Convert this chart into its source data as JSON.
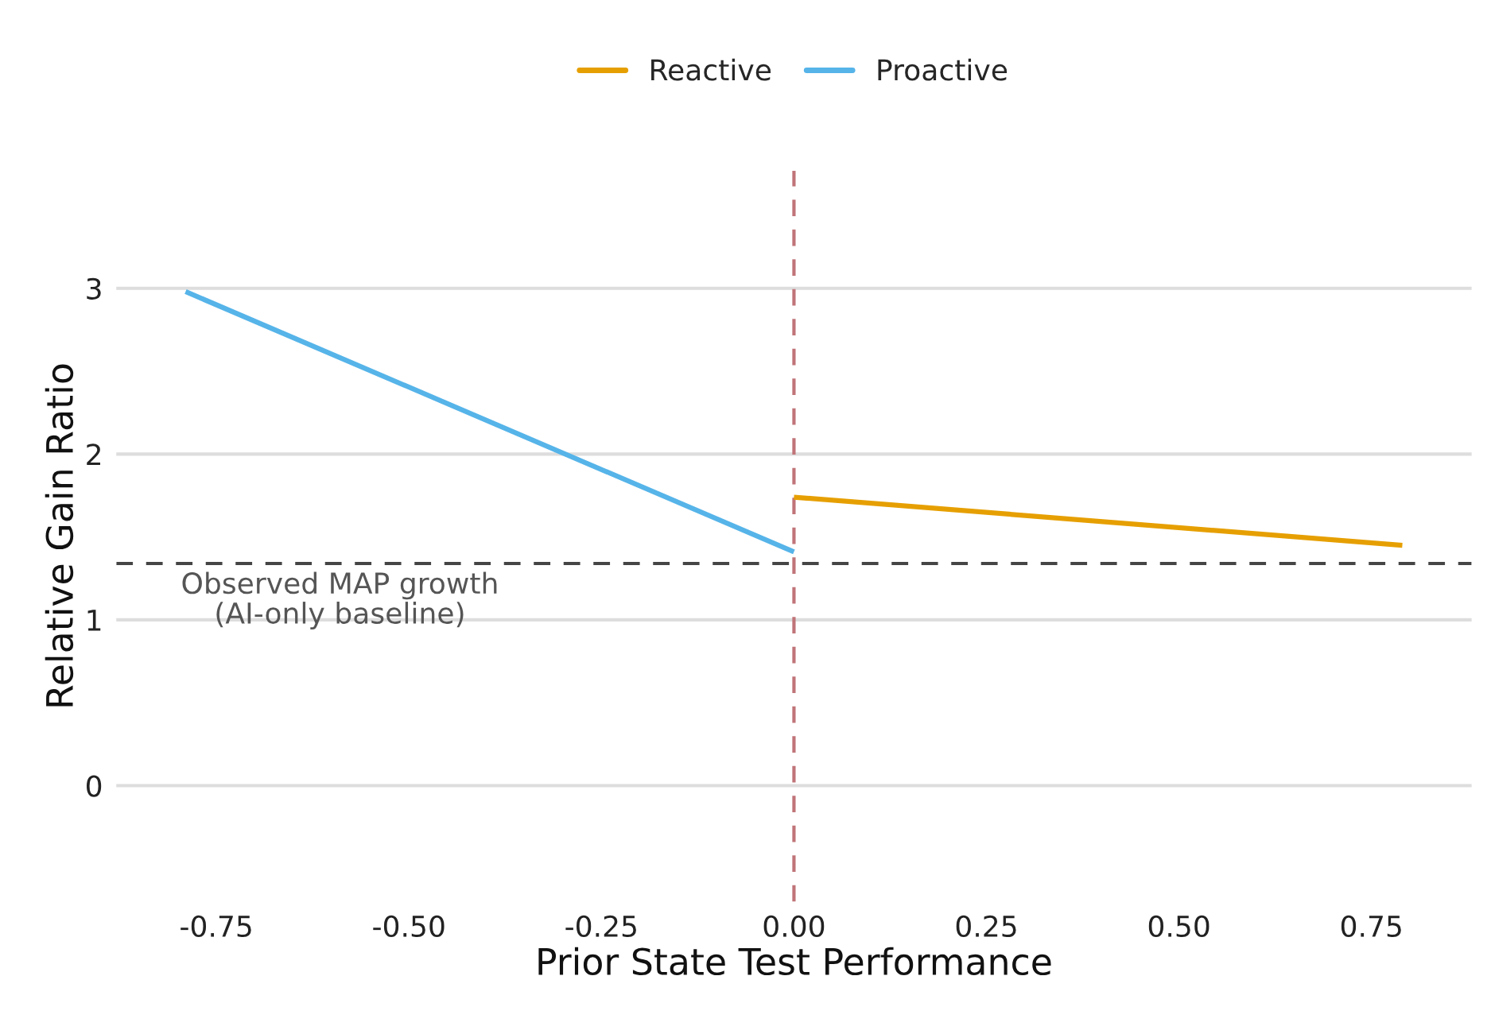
{
  "chart_data": {
    "type": "line",
    "xlabel": "Prior State Test Performance",
    "ylabel": "Relative Gain Ratio",
    "series": [
      {
        "name": "Reactive",
        "color": "#e69f00",
        "x": [
          0.0,
          0.79
        ],
        "values": [
          1.74,
          1.45
        ]
      },
      {
        "name": "Proactive",
        "color": "#56b4e9",
        "x": [
          -0.79,
          0.0
        ],
        "values": [
          2.98,
          1.41
        ]
      }
    ],
    "xlim": [
      -0.88,
      0.88
    ],
    "ylim": [
      -0.7,
      3.71
    ],
    "xticks": [
      {
        "value": -0.75,
        "label": "-0.75"
      },
      {
        "value": -0.5,
        "label": "-0.50"
      },
      {
        "value": -0.25,
        "label": "-0.25"
      },
      {
        "value": 0,
        "label": "0.00"
      },
      {
        "value": 0.25,
        "label": "0.25"
      },
      {
        "value": 0.5,
        "label": "0.50"
      },
      {
        "value": 0.75,
        "label": "0.75"
      }
    ],
    "yticks": [
      0,
      1,
      2,
      3
    ],
    "ref_lines": [
      {
        "axis": "y",
        "value": 1.34,
        "label": "Observed MAP growth\n(AI-only baseline)",
        "color": "#454545",
        "line_style": "dashed"
      },
      {
        "axis": "x",
        "value": 0.0,
        "color": "#c07478",
        "line_style": "dashed"
      }
    ],
    "grid": "y",
    "legend": "top",
    "line_style": "solid",
    "marker": "none"
  }
}
